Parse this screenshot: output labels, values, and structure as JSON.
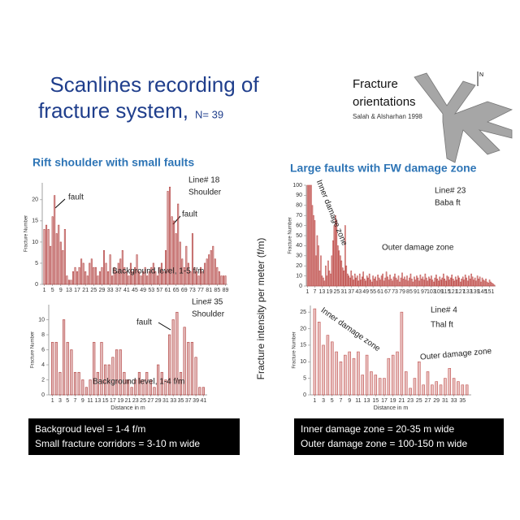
{
  "slide": {
    "title_line1": "Scanlines recording of",
    "title_line2": "fracture system,",
    "count": "N= 39",
    "rose_title1": "Fracture",
    "rose_title2": "orientations",
    "rose_source": "Salah & Alsharhan 1998",
    "north": "N",
    "left_heading": "Rift shoulder with small faults",
    "right_heading": "Large faults with FW damage zone",
    "shared_ylabel": "Fracture intensity per meter (f/m)",
    "left_notes": [
      "Backgroud level = 1-4 f/m",
      "Small fracture corridors = 3-10 m wide"
    ],
    "right_notes": [
      "Inner damage zone = 20-35 m wide",
      "Outer damage zone = 100-150 m wide"
    ]
  },
  "chart_data": [
    {
      "type": "bar",
      "color": "#b03a38",
      "ylabel": "Fracture Number",
      "annotations": [
        "Line# 18",
        "Shoulder",
        "fault",
        "fault",
        "Background level, 1-5 f/m"
      ],
      "x": [
        1,
        2,
        3,
        4,
        5,
        6,
        7,
        8,
        9,
        10,
        11,
        12,
        13,
        14,
        15,
        16,
        17,
        18,
        19,
        20,
        21,
        22,
        23,
        24,
        25,
        26,
        27,
        28,
        29,
        30,
        31,
        32,
        33,
        34,
        35,
        36,
        37,
        38,
        39,
        40,
        41,
        42,
        43,
        44,
        45,
        46,
        47,
        48,
        49,
        50,
        51,
        52,
        53,
        54,
        55,
        56,
        57,
        58,
        59,
        60,
        61,
        62,
        63,
        64,
        65,
        66,
        67,
        68,
        69,
        70,
        71,
        72,
        73,
        74,
        75,
        76,
        77,
        78,
        79,
        80,
        81,
        82,
        83,
        84,
        85,
        86,
        87,
        88,
        89
      ],
      "values": [
        13,
        14,
        13,
        9,
        16,
        21,
        12,
        14,
        10,
        8,
        13,
        2,
        1,
        1,
        3,
        4,
        3,
        4,
        6,
        5,
        3,
        2,
        5,
        6,
        4,
        4,
        2,
        3,
        4,
        8,
        5,
        3,
        7,
        2,
        4,
        3,
        5,
        6,
        8,
        4,
        3,
        2,
        5,
        3,
        4,
        7,
        3,
        2,
        3,
        4,
        2,
        3,
        4,
        5,
        3,
        2,
        4,
        5,
        3,
        8,
        22,
        23,
        16,
        15,
        12,
        19,
        10,
        6,
        4,
        9,
        5,
        3,
        12,
        4,
        3,
        2,
        4,
        3,
        5,
        6,
        7,
        8,
        9,
        6,
        4,
        3,
        2,
        2,
        2
      ],
      "xlim": [
        0,
        90
      ],
      "xticks": [
        1,
        5,
        9,
        13,
        17,
        21,
        25,
        29,
        33,
        37,
        41,
        45,
        49,
        53,
        57,
        61,
        65,
        69,
        73,
        77,
        81,
        85,
        89
      ],
      "ylim": [
        0,
        24
      ],
      "yticks": [
        0,
        5,
        10,
        15,
        20
      ]
    },
    {
      "type": "bar",
      "color": "#b03a38",
      "ylabel": "Fracture Number",
      "xlabel": "Distance in m",
      "annotations": [
        "Line# 35",
        "Shoulder",
        "fault",
        "Background level, 1-4 f/m"
      ],
      "x": [
        1,
        2,
        3,
        4,
        5,
        6,
        7,
        8,
        9,
        10,
        11,
        12,
        13,
        14,
        15,
        16,
        17,
        18,
        19,
        20,
        21,
        22,
        23,
        24,
        25,
        26,
        27,
        28,
        29,
        30,
        31,
        32,
        33,
        34,
        35,
        36,
        37,
        38,
        39,
        40,
        41
      ],
      "values": [
        7,
        7,
        3,
        10,
        7,
        6,
        3,
        3,
        2,
        1,
        2,
        7,
        3,
        7,
        4,
        4,
        5,
        6,
        6,
        3,
        2,
        1,
        2,
        3,
        2,
        3,
        2,
        1,
        4,
        3,
        2,
        8,
        10,
        11,
        3,
        9,
        7,
        7,
        5,
        1,
        1
      ],
      "xlim": [
        0,
        42
      ],
      "xticks": [
        1,
        3,
        5,
        7,
        9,
        11,
        13,
        15,
        17,
        19,
        21,
        23,
        25,
        27,
        29,
        31,
        33,
        35,
        37,
        39,
        41
      ],
      "ylim": [
        0,
        12
      ],
      "yticks": [
        0,
        2,
        4,
        6,
        8,
        10
      ]
    },
    {
      "type": "bar",
      "color": "#c0504d",
      "ylabel": "Fracture Number",
      "annotations": [
        "Inner damage zone",
        "Line# 23",
        "Baba ft",
        "Outer damage zone"
      ],
      "x": [
        1,
        2,
        3,
        4,
        5,
        6,
        7,
        8,
        9,
        10,
        11,
        12,
        13,
        14,
        15,
        16,
        17,
        18,
        19,
        20,
        21,
        22,
        23,
        24,
        25,
        26,
        27,
        28,
        29,
        30,
        31,
        32,
        33,
        34,
        35,
        36,
        37,
        38,
        39,
        40,
        41,
        42,
        43,
        44,
        45,
        46,
        47,
        48,
        49,
        50,
        51,
        52,
        53,
        54,
        55,
        56,
        57,
        58,
        59,
        60,
        61,
        62,
        63,
        64,
        65,
        66,
        67,
        68,
        69,
        70,
        71,
        72,
        73,
        74,
        75,
        76,
        77,
        78,
        79,
        80,
        81,
        82,
        83,
        84,
        85,
        86,
        87,
        88,
        89,
        90,
        91,
        92,
        93,
        94,
        95,
        96,
        97,
        98,
        99,
        100,
        101,
        102,
        103,
        104,
        105,
        106,
        107,
        108,
        109,
        110,
        111,
        112,
        113,
        114,
        115,
        116,
        117,
        118,
        119,
        120,
        121,
        122,
        123,
        124,
        125,
        126,
        127,
        128,
        129,
        130,
        131,
        132,
        133,
        134,
        135,
        136,
        137,
        138,
        139,
        140,
        141,
        142,
        143,
        144,
        145,
        146,
        147,
        148,
        149,
        150,
        151,
        152,
        153,
        154,
        155
      ],
      "values": [
        100,
        100,
        100,
        100,
        80,
        70,
        65,
        30,
        50,
        40,
        15,
        30,
        10,
        8,
        5,
        20,
        10,
        25,
        15,
        12,
        30,
        45,
        60,
        70,
        65,
        40,
        35,
        30,
        25,
        18,
        15,
        60,
        20,
        12,
        10,
        8,
        15,
        10,
        6,
        12,
        8,
        10,
        5,
        12,
        6,
        9,
        14,
        7,
        5,
        10,
        8,
        12,
        6,
        4,
        10,
        7,
        9,
        5,
        11,
        8,
        6,
        10,
        12,
        5,
        8,
        14,
        9,
        6,
        11,
        7,
        5,
        9,
        12,
        8,
        6,
        10,
        4,
        8,
        13,
        7,
        9,
        6,
        10,
        5,
        8,
        12,
        7,
        4,
        9,
        6,
        10,
        8,
        5,
        11,
        7,
        9,
        6,
        12,
        8,
        5,
        9,
        7,
        10,
        6,
        4,
        8,
        11,
        7,
        5,
        9,
        6,
        8,
        12,
        7,
        5,
        10,
        9,
        6,
        8,
        11,
        7,
        5,
        9,
        6,
        10,
        8,
        4,
        7,
        9,
        6,
        11,
        8,
        5,
        10,
        7,
        12,
        9,
        6,
        8,
        5,
        10,
        7,
        9,
        4,
        8,
        6,
        5,
        7,
        4,
        3,
        6,
        4,
        3,
        2,
        1
      ],
      "xlim": [
        0,
        156
      ],
      "xticks": [
        1,
        7,
        13,
        19,
        25,
        31,
        37,
        43,
        49,
        55,
        61,
        67,
        73,
        79,
        85,
        91,
        97,
        103,
        109,
        115,
        121,
        127,
        133,
        139,
        145,
        151
      ],
      "ylim": [
        0,
        100
      ],
      "yticks": [
        0,
        10,
        20,
        30,
        40,
        50,
        60,
        70,
        80,
        90,
        100
      ]
    },
    {
      "type": "bar",
      "color": "#c0504d",
      "ylabel": "Fracture Number",
      "xlabel": "Distance in m",
      "annotations": [
        "Line# 4",
        "Thal ft",
        "Inner damage zone",
        "Outer damage zone"
      ],
      "x": [
        1,
        2,
        3,
        4,
        5,
        6,
        7,
        8,
        9,
        10,
        11,
        12,
        13,
        14,
        15,
        16,
        17,
        18,
        19,
        20,
        21,
        22,
        23,
        24,
        25,
        26,
        27,
        28,
        29,
        30,
        31,
        32,
        33,
        34,
        35,
        36
      ],
      "values": [
        26,
        22,
        15,
        18,
        16,
        13,
        10,
        12,
        13,
        11,
        13,
        6,
        12,
        7,
        6,
        5,
        5,
        11,
        12,
        13,
        25,
        7,
        2,
        5,
        10,
        3,
        7,
        3,
        4,
        3,
        5,
        8,
        5,
        4,
        3,
        3
      ],
      "xlim": [
        0,
        37
      ],
      "xticks": [
        1,
        3,
        5,
        7,
        9,
        11,
        13,
        15,
        17,
        19,
        21,
        23,
        25,
        27,
        29,
        31,
        33,
        35
      ],
      "ylim": [
        0,
        27
      ],
      "yticks": [
        0,
        5,
        10,
        15,
        20,
        25
      ]
    }
  ]
}
